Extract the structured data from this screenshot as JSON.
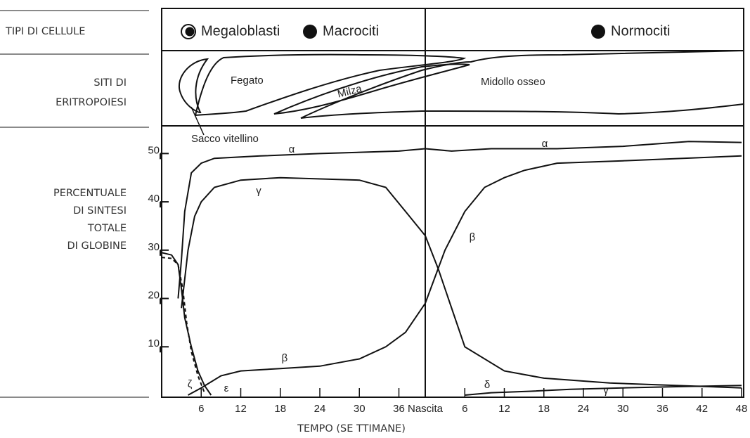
{
  "chart_data": {
    "type": "line",
    "row_labels": [
      [
        "TIPI DI CELLULE"
      ],
      [
        "SITI DI",
        "ERITROPOIESI"
      ],
      [
        "PERCENTUALE",
        "DI SINTESI",
        "TOTALE",
        "DI GLOBINE"
      ]
    ],
    "cell_types": [
      "Megaloblasti",
      "Macrociti",
      "Normociti"
    ],
    "sites": [
      "Fegato",
      "Milza",
      "Midollo osseo",
      "Sacco vitellino"
    ],
    "x_label": "TEMPO (SE TTIMANE)",
    "xlim": [
      0,
      88
    ],
    "xticks": [
      6,
      12,
      18,
      24,
      30,
      36,
      {
        "value": 40,
        "label": "Nascita"
      },
      {
        "value": 46,
        "label": "6"
      },
      {
        "value": 52,
        "label": "12"
      },
      {
        "value": 58,
        "label": "18"
      },
      {
        "value": 64,
        "label": "24"
      },
      {
        "value": 70,
        "label": "30"
      },
      {
        "value": 76,
        "label": "36"
      },
      {
        "value": 82,
        "label": "42"
      },
      {
        "value": 88,
        "label": "48"
      }
    ],
    "ylim": [
      0,
      55
    ],
    "yticks": [
      10,
      20,
      30,
      40,
      50
    ],
    "series": [
      {
        "name": "α",
        "color": "#111",
        "x": [
          2.5,
          3,
          3.5,
          4.5,
          6,
          8,
          15,
          24,
          36,
          40,
          44,
          50,
          60,
          70,
          80,
          88
        ],
        "values": [
          20,
          28,
          38,
          46,
          48,
          49,
          49.5,
          50,
          50.5,
          51,
          50.5,
          51,
          51,
          51.5,
          52.5,
          52.3
        ]
      },
      {
        "name": "γ",
        "color": "#111",
        "x": [
          3,
          4,
          5,
          6,
          8,
          12,
          18,
          30,
          34,
          37,
          40,
          42,
          43.5,
          46,
          52,
          58,
          68,
          88
        ],
        "values": [
          18,
          30,
          37,
          40,
          43,
          44.5,
          45,
          44.5,
          43,
          38,
          33,
          26,
          20,
          10,
          5,
          3.5,
          2.5,
          1.5
        ]
      },
      {
        "name": "β",
        "color": "#111",
        "x": [
          4,
          6,
          9,
          12,
          18,
          24,
          30,
          34,
          37,
          40,
          43,
          46,
          49,
          52,
          55,
          60,
          70,
          88
        ],
        "values": [
          0,
          1.5,
          4,
          5,
          5.5,
          6,
          7.5,
          10,
          13,
          19,
          30,
          38,
          43,
          45,
          46.5,
          48,
          48.5,
          49.5
        ]
      },
      {
        "name": "ζ",
        "color": "#111",
        "x": [
          0,
          1.5,
          2.5,
          3,
          3.5,
          4.5,
          5.5,
          6.5,
          7.5
        ],
        "values": [
          29.5,
          29,
          27,
          22,
          16,
          10,
          5,
          2,
          0
        ]
      },
      {
        "name": "ε",
        "color": "#111",
        "dashed": true,
        "x": [
          0,
          1.5,
          2.5,
          3.2,
          3.8,
          4.5,
          5.5,
          6.5
        ],
        "values": [
          28.5,
          28.3,
          27,
          22,
          15,
          9,
          4,
          0.5
        ]
      },
      {
        "name": "δ",
        "color": "#111",
        "x": [
          46,
          50,
          56,
          62,
          70,
          80,
          88
        ],
        "values": [
          0,
          0.5,
          0.8,
          1.2,
          1.5,
          1.8,
          2
        ]
      }
    ]
  }
}
